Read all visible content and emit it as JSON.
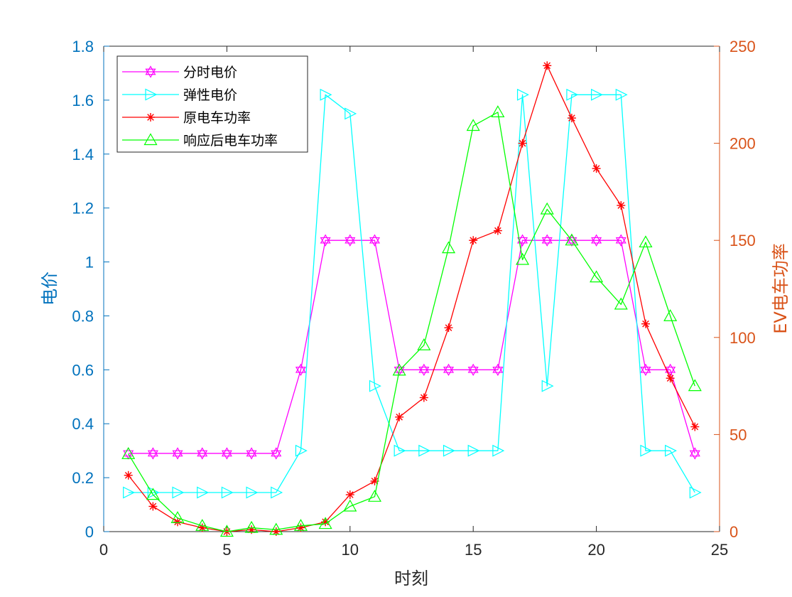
{
  "chart_data": {
    "type": "line",
    "xlabel": "时刻",
    "ylabel_left": "电价",
    "ylabel_right": "EV电车功率",
    "xlim": [
      0,
      25
    ],
    "ylim_left": [
      0,
      1.8
    ],
    "ylim_right": [
      0,
      250
    ],
    "x_ticks": [
      "0",
      "5",
      "10",
      "15",
      "20",
      "25"
    ],
    "y_left_ticks": [
      "0",
      "0.2",
      "0.4",
      "0.6",
      "0.8",
      "1",
      "1.2",
      "1.4",
      "1.6",
      "1.8"
    ],
    "y_right_ticks": [
      "0",
      "50",
      "100",
      "150",
      "200",
      "250"
    ],
    "grid": false,
    "legend_position": "top-left",
    "axis_colors": {
      "left": "#0072BD",
      "right": "#D95319",
      "x": "#262626"
    },
    "x": [
      1,
      2,
      3,
      4,
      5,
      6,
      7,
      8,
      9,
      10,
      11,
      12,
      13,
      14,
      15,
      16,
      17,
      18,
      19,
      20,
      21,
      22,
      23,
      24
    ],
    "series": [
      {
        "name": "分时电价",
        "axis": "left",
        "color": "#FF00FF",
        "marker": "hexagram",
        "values": [
          0.29,
          0.29,
          0.29,
          0.29,
          0.29,
          0.29,
          0.29,
          0.6,
          1.08,
          1.08,
          1.08,
          0.6,
          0.6,
          0.6,
          0.6,
          0.6,
          1.08,
          1.08,
          1.08,
          1.08,
          1.08,
          0.6,
          0.6,
          0.29
        ]
      },
      {
        "name": "弹性电价",
        "axis": "left",
        "color": "#00FFFF",
        "marker": "triangle-right",
        "values": [
          0.145,
          0.145,
          0.145,
          0.145,
          0.145,
          0.145,
          0.145,
          0.3,
          1.62,
          1.55,
          0.54,
          0.3,
          0.3,
          0.3,
          0.3,
          0.3,
          1.62,
          0.54,
          1.62,
          1.62,
          1.62,
          0.3,
          0.3,
          0.145
        ]
      },
      {
        "name": "原电车功率",
        "axis": "right",
        "color": "#FF0000",
        "marker": "asterisk",
        "values": [
          29,
          13,
          5,
          2,
          0,
          1,
          0,
          2,
          5,
          19,
          26,
          59,
          69,
          105,
          150,
          155,
          200,
          240,
          213,
          187,
          168,
          107,
          79,
          54
        ]
      },
      {
        "name": "响应后电车功率",
        "axis": "right",
        "color": "#00FF00",
        "marker": "triangle-up",
        "values": [
          40,
          19,
          7,
          3,
          0,
          2,
          1,
          3,
          4,
          13,
          18,
          83,
          96,
          146,
          209,
          216,
          140,
          166,
          150,
          131,
          117,
          149,
          111,
          75
        ]
      }
    ]
  }
}
